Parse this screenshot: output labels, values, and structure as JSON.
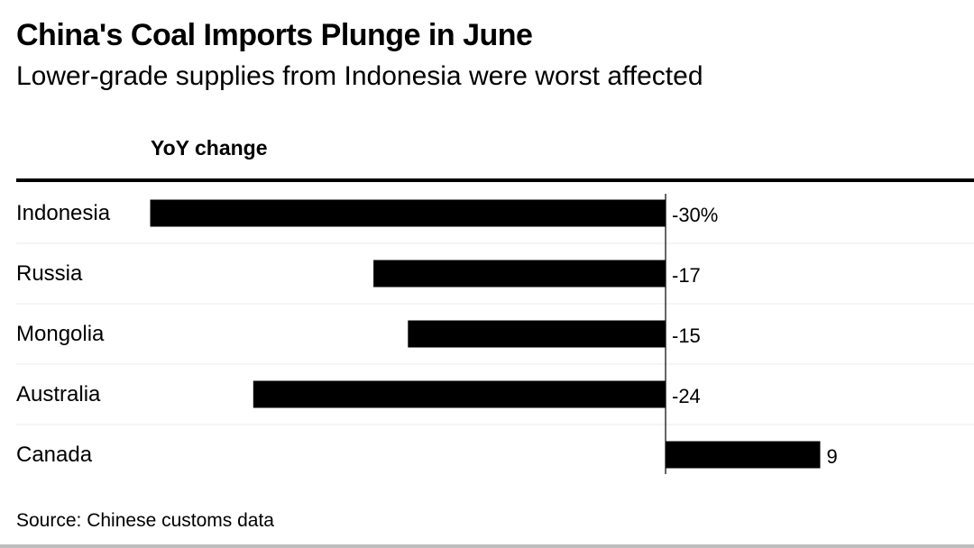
{
  "chart_data": {
    "type": "bar",
    "orientation": "horizontal",
    "title": "China's Coal Imports Plunge in June",
    "subtitle": "Lower-grade supplies from Indonesia were worst affected",
    "column_header": "YoY change",
    "categories": [
      "Indonesia",
      "Russia",
      "Mongolia",
      "Australia",
      "Canada"
    ],
    "values": [
      -30,
      -17,
      -15,
      -24,
      9
    ],
    "value_labels": [
      "-30%",
      "-17",
      "-15",
      "-24",
      "9"
    ],
    "xlim": [
      -30,
      10
    ],
    "source": "Source: Chinese customs data",
    "bar_color": "#000000",
    "grid": false
  }
}
